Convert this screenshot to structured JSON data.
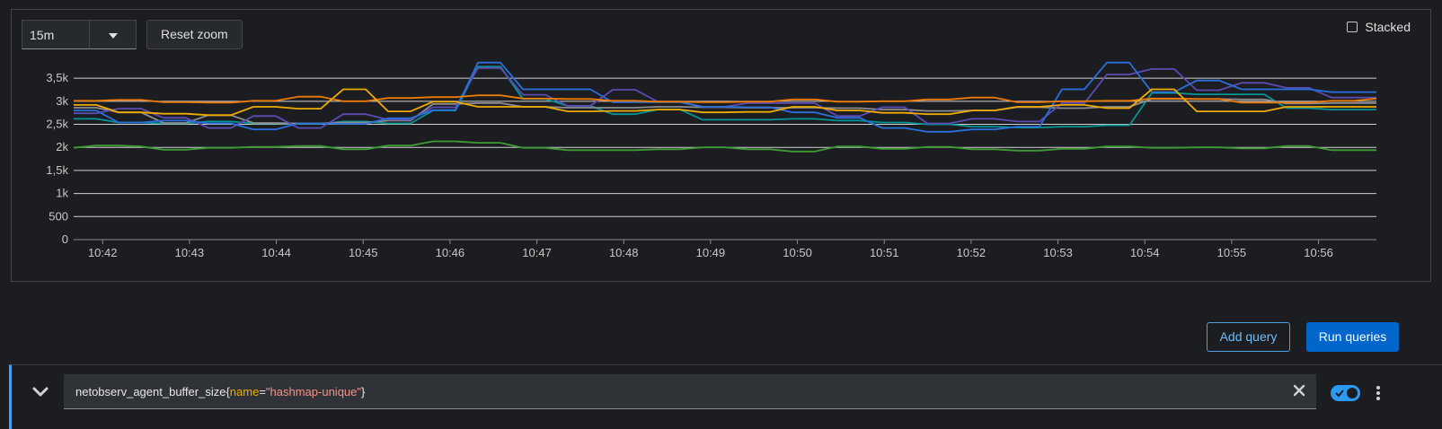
{
  "toolbar": {
    "range_value": "15m",
    "reset_zoom_label": "Reset zoom",
    "stacked_label": "Stacked",
    "stacked_checked": false
  },
  "chart_data": {
    "type": "line",
    "x_ticks": [
      "10:42",
      "10:43",
      "10:44",
      "10:45",
      "10:46",
      "10:47",
      "10:48",
      "10:49",
      "10:50",
      "10:51",
      "10:52",
      "10:53",
      "10:54",
      "10:55",
      "10:56"
    ],
    "x_range": [
      "10:41:40",
      "10:56:40"
    ],
    "y_ticks": [
      "0",
      "500",
      "1k",
      "1,5k",
      "2k",
      "2,5k",
      "3k",
      "3,5k"
    ],
    "ylim": [
      0,
      3600
    ],
    "grid": true,
    "legend": "none",
    "series": [
      {
        "color": "#3f9c35",
        "values": [
          1990,
          2040,
          2040,
          2020,
          1950,
          1950,
          1990,
          1990,
          2010,
          2010,
          2030,
          2030,
          1960,
          1960,
          2040,
          2040,
          2130,
          2130,
          2100,
          2100,
          1990,
          1990,
          1940,
          1940,
          1940,
          1940,
          1960,
          1960,
          2000,
          2000,
          1960,
          1960,
          1910,
          1910,
          2020,
          2020,
          1970,
          1970,
          2010,
          2010,
          1960,
          1960,
          1930,
          1930,
          1970,
          1970,
          2020,
          2020,
          1990,
          1990,
          2000,
          2000,
          1980,
          1980,
          2030,
          2030,
          1940,
          1940,
          1940
        ]
      },
      {
        "color": "#009596",
        "values": [
          2620,
          2620,
          2540,
          2540,
          2520,
          2520,
          2560,
          2560,
          2520,
          2520,
          2510,
          2510,
          2560,
          2560,
          2520,
          2520,
          2800,
          2800,
          3750,
          3750,
          3050,
          3050,
          2900,
          2900,
          2720,
          2720,
          2820,
          2820,
          2600,
          2600,
          2600,
          2600,
          2620,
          2620,
          2580,
          2580,
          2540,
          2540,
          2500,
          2500,
          2450,
          2450,
          2430,
          2430,
          2450,
          2450,
          2480,
          2480,
          3180,
          3180,
          3150,
          3150,
          3150,
          3150,
          2850,
          2850,
          2820,
          2820,
          2820
        ]
      },
      {
        "color": "#8b8d8f",
        "values": [
          2860,
          2860,
          2760,
          2760,
          2530,
          2530,
          2700,
          2700,
          2530,
          2530,
          2520,
          2520,
          2540,
          2540,
          2580,
          2580,
          2940,
          2940,
          2960,
          2960,
          2880,
          2880,
          2860,
          2860,
          2860,
          2860,
          2880,
          2880,
          2870,
          2870,
          2860,
          2860,
          2860,
          2860,
          2850,
          2850,
          2820,
          2820,
          2790,
          2790,
          2800,
          2800,
          2870,
          2870,
          2850,
          2850,
          2880,
          2880,
          3050,
          3050,
          3050,
          3050,
          3040,
          3040,
          2950,
          2950,
          2960,
          2960,
          2960
        ]
      },
      {
        "color": "#5c4bb3",
        "values": [
          2740,
          2740,
          2840,
          2840,
          2640,
          2640,
          2420,
          2420,
          2680,
          2680,
          2420,
          2420,
          2720,
          2720,
          2600,
          2600,
          2870,
          2870,
          3720,
          3720,
          3140,
          3140,
          2900,
          2900,
          3250,
          3250,
          2990,
          2990,
          2880,
          2880,
          2960,
          2960,
          2960,
          2960,
          2680,
          2680,
          2870,
          2870,
          2520,
          2520,
          2620,
          2620,
          2560,
          2560,
          2960,
          2960,
          3580,
          3580,
          3700,
          3700,
          3240,
          3240,
          3400,
          3400,
          3290,
          3290,
          3080,
          3080,
          3080
        ]
      },
      {
        "color": "#2a6fdb",
        "values": [
          2800,
          2800,
          2540,
          2540,
          2580,
          2580,
          2520,
          2520,
          2390,
          2390,
          2520,
          2520,
          2510,
          2510,
          2630,
          2630,
          2810,
          2810,
          3840,
          3840,
          3260,
          3260,
          3260,
          3260,
          2980,
          2980,
          2980,
          2980,
          2880,
          2880,
          2870,
          2870,
          2760,
          2760,
          2640,
          2640,
          2420,
          2420,
          2340,
          2340,
          2390,
          2390,
          2450,
          2450,
          3260,
          3260,
          3840,
          3840,
          3200,
          3200,
          3450,
          3450,
          3260,
          3260,
          3260,
          3260,
          3200,
          3200,
          3200
        ]
      },
      {
        "color": "#ec7a08",
        "values": [
          3010,
          3010,
          3030,
          3030,
          2980,
          2980,
          2970,
          2970,
          3010,
          3010,
          3100,
          3100,
          3000,
          3000,
          3070,
          3070,
          3090,
          3090,
          3130,
          3130,
          3060,
          3060,
          3050,
          3050,
          3010,
          3010,
          2990,
          2990,
          2980,
          2980,
          2990,
          2990,
          3040,
          3040,
          2990,
          2990,
          3000,
          3000,
          3040,
          3040,
          3080,
          3080,
          2980,
          2980,
          3000,
          3000,
          3010,
          3010,
          3060,
          3060,
          3050,
          3050,
          2970,
          2970,
          2970,
          2970,
          3010,
          3010,
          3060
        ]
      },
      {
        "color": "#f0ab00",
        "values": [
          2920,
          2920,
          2760,
          2760,
          2730,
          2730,
          2700,
          2700,
          2880,
          2880,
          2840,
          2840,
          3260,
          3260,
          2780,
          2780,
          2990,
          2990,
          2880,
          2880,
          2880,
          2880,
          2780,
          2780,
          2790,
          2790,
          2820,
          2820,
          2760,
          2760,
          2770,
          2770,
          2880,
          2880,
          2800,
          2800,
          2750,
          2750,
          2720,
          2720,
          2800,
          2800,
          2880,
          2880,
          2920,
          2920,
          2850,
          2850,
          3260,
          3260,
          2780,
          2780,
          2780,
          2780,
          2880,
          2880,
          2880,
          2880,
          2880
        ]
      }
    ]
  },
  "actions": {
    "add_query_label": "Add query",
    "run_queries_label": "Run queries"
  },
  "query": {
    "metric": "netobserv_agent_buffer_size",
    "open_brace": "{",
    "label_name": "name",
    "equals": "=",
    "label_value": "\"hashmap-unique\"",
    "close_brace": "}",
    "enabled": true
  },
  "icons": {
    "dropdown": "caret-down-icon",
    "expand": "chevron-down-icon",
    "clear": "close-icon",
    "menu": "kebab-icon",
    "toggle_check": "check-icon"
  }
}
